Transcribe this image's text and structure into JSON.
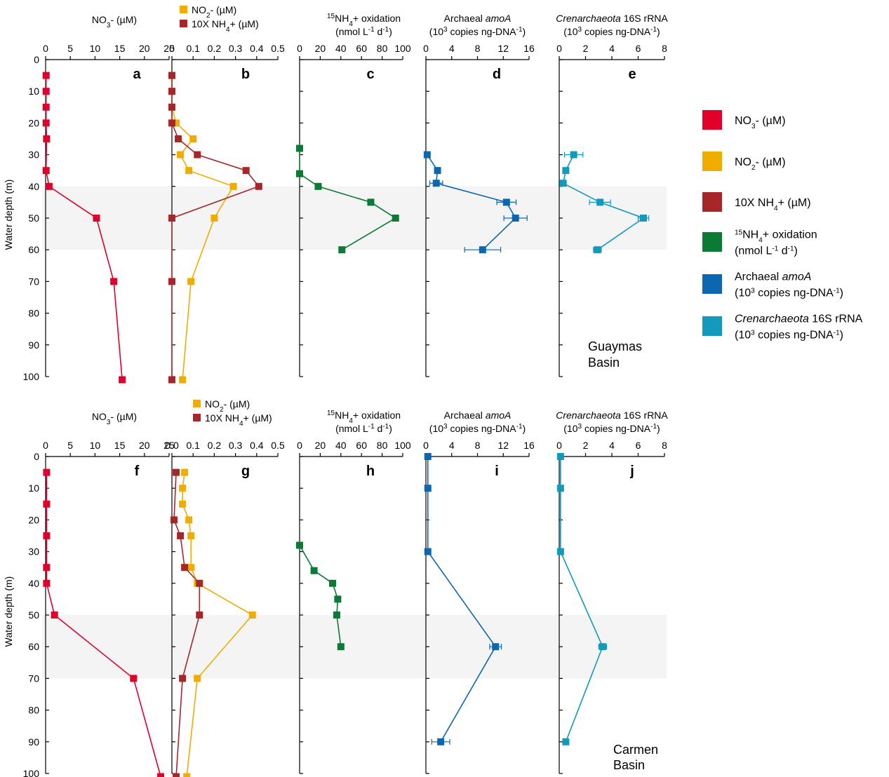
{
  "figure": {
    "legend": [
      {
        "key": "no3",
        "label": "NO3- (µM)",
        "color": "#e0002a"
      },
      {
        "key": "no2",
        "label": "NO2- (µM)",
        "color": "#f0ac00"
      },
      {
        "key": "nh4",
        "label": "10X NH4+ (µM)",
        "color": "#a6262a"
      },
      {
        "key": "ox",
        "label": "15NH4+ oxidation (nmol L-1 d-1)",
        "color": "#0a7a34"
      },
      {
        "key": "amoa",
        "label": "Archaeal amoA (103 copies ng-DNA-1)",
        "color": "#0d67b0"
      },
      {
        "key": "cren",
        "label": "Crenarchaeota 16S rRNA (103 copies ng-DNA-1)",
        "color": "#1399bc"
      }
    ],
    "rows": [
      {
        "basin": [
          "Guaymas",
          "Basin"
        ],
        "ylabel": "Water depth (m)"
      },
      {
        "basin": [
          "Carmen",
          "Basin"
        ],
        "ylabel": "Water depth (m)"
      }
    ]
  },
  "chart_data": [
    {
      "type": "line",
      "panel": "a",
      "title": "NO3- (µM)",
      "ylabel": "Water depth (m)",
      "xlim": [
        0,
        25
      ],
      "xticks": [
        0,
        5,
        10,
        15,
        20,
        25
      ],
      "ylim": [
        0,
        100
      ],
      "yticks": [
        0,
        10,
        20,
        30,
        40,
        50,
        60,
        70,
        80,
        90,
        100
      ],
      "y_inverted": true,
      "shaded_depth": [
        40,
        60
      ],
      "series": [
        {
          "name": "NO3- (µM)",
          "color": "#e0002a",
          "points": [
            [
              0.1,
              5
            ],
            [
              0.1,
              10
            ],
            [
              0.1,
              15
            ],
            [
              0.1,
              20
            ],
            [
              0.2,
              25
            ],
            [
              0.1,
              35
            ],
            [
              0.7,
              40
            ],
            [
              10.3,
              50
            ],
            [
              13.8,
              70
            ],
            [
              15.5,
              101
            ]
          ]
        }
      ]
    },
    {
      "type": "line",
      "panel": "b",
      "title": "",
      "legend": [
        "NO2- (µM)",
        "10X NH4+ (µM)"
      ],
      "xlim": [
        0,
        0.5
      ],
      "xticks": [
        0,
        0.1,
        0.2,
        0.3,
        0.4,
        0.5
      ],
      "ylim": [
        0,
        100
      ],
      "yticks": [
        0,
        10,
        20,
        30,
        40,
        50,
        60,
        70,
        80,
        90,
        100
      ],
      "y_inverted": true,
      "shaded_depth": [
        40,
        60
      ],
      "series": [
        {
          "name": "NO2- (µM)",
          "color": "#f0ac00",
          "points": [
            [
              0.0,
              5
            ],
            [
              0.0,
              10
            ],
            [
              0.0,
              15
            ],
            [
              0.02,
              20
            ],
            [
              0.1,
              25
            ],
            [
              0.04,
              30
            ],
            [
              0.08,
              35
            ],
            [
              0.29,
              40
            ],
            [
              0.2,
              50
            ],
            [
              0.09,
              70
            ],
            [
              0.05,
              101
            ]
          ]
        },
        {
          "name": "10X NH4+ (µM)",
          "color": "#a6262a",
          "points": [
            [
              0.0,
              5
            ],
            [
              0.0,
              10
            ],
            [
              0.0,
              15
            ],
            [
              0.0,
              20
            ],
            [
              0.03,
              25
            ],
            [
              0.12,
              30
            ],
            [
              0.35,
              35
            ],
            [
              0.41,
              40
            ],
            [
              0.0,
              50
            ],
            [
              0.0,
              70
            ],
            [
              0.0,
              101
            ]
          ]
        }
      ]
    },
    {
      "type": "line",
      "panel": "c",
      "title": "15NH4+ oxidation (nmol L-1 d-1)",
      "xlim": [
        0,
        100
      ],
      "xticks": [
        0,
        20,
        40,
        60,
        80,
        100
      ],
      "ylim": [
        0,
        100
      ],
      "yticks": [
        0,
        10,
        20,
        30,
        40,
        50,
        60,
        70,
        80,
        90,
        100
      ],
      "y_inverted": true,
      "shaded_depth": [
        40,
        60
      ],
      "series": [
        {
          "name": "15NH4+ oxidation",
          "color": "#0a7a34",
          "points": [
            [
              0,
              28
            ],
            [
              0,
              36
            ],
            [
              18,
              40
            ],
            [
              69,
              45
            ],
            [
              93,
              50
            ],
            [
              41,
              60
            ]
          ]
        }
      ]
    },
    {
      "type": "line",
      "panel": "d",
      "title": "Archaeal amoA (103 copies ng-DNA-1)",
      "xlim": [
        0,
        16
      ],
      "xticks": [
        0,
        4,
        8,
        12,
        16
      ],
      "ylim": [
        0,
        100
      ],
      "yticks": [
        0,
        10,
        20,
        30,
        40,
        50,
        60,
        70,
        80,
        90,
        100
      ],
      "y_inverted": true,
      "shaded_depth": [
        40,
        60
      ],
      "series": [
        {
          "name": "Archaeal amoA",
          "color": "#0d67b0",
          "points": [
            [
              0.2,
              30
            ],
            [
              1.8,
              35
            ],
            [
              1.6,
              39
            ],
            [
              12.5,
              45
            ],
            [
              13.9,
              50
            ],
            [
              8.8,
              60
            ]
          ],
          "xerr": [
            0,
            0,
            1,
            1.5,
            1.8,
            2.8
          ]
        }
      ]
    },
    {
      "type": "line",
      "panel": "e",
      "title": "Crenarchaeota 16S rRNA (103 copies ng-DNA-1)",
      "xlim": [
        0,
        8
      ],
      "xticks": [
        0,
        2,
        4,
        6,
        8
      ],
      "ylim": [
        0,
        100
      ],
      "yticks": [
        0,
        10,
        20,
        30,
        40,
        50,
        60,
        70,
        80,
        90,
        100
      ],
      "y_inverted": true,
      "shaded_depth": [
        40,
        60
      ],
      "series": [
        {
          "name": "Crenarchaeota 16S rRNA",
          "color": "#1399bc",
          "points": [
            [
              1.1,
              30
            ],
            [
              0.5,
              35
            ],
            [
              0.3,
              39
            ],
            [
              3.1,
              45
            ],
            [
              6.4,
              50
            ],
            [
              2.9,
              60
            ]
          ],
          "xerr": [
            0.7,
            0,
            0,
            0.8,
            0.4,
            0.3
          ]
        }
      ]
    },
    {
      "type": "line",
      "panel": "f",
      "title": "NO3- (µM)",
      "ylabel": "Water depth (m)",
      "xlim": [
        0,
        25
      ],
      "xticks": [
        0,
        5,
        10,
        15,
        20,
        25
      ],
      "ylim": [
        0,
        100
      ],
      "yticks": [
        0,
        10,
        20,
        30,
        40,
        50,
        60,
        70,
        80,
        90,
        100
      ],
      "y_inverted": true,
      "shaded_depth": [
        50,
        70
      ],
      "series": [
        {
          "name": "NO3- (µM)",
          "color": "#e0002a",
          "points": [
            [
              0.2,
              5
            ],
            [
              0.2,
              15
            ],
            [
              0.2,
              25
            ],
            [
              0.2,
              35
            ],
            [
              0.2,
              40
            ],
            [
              1.8,
              50
            ],
            [
              17.8,
              70
            ],
            [
              23.3,
              101
            ]
          ]
        }
      ]
    },
    {
      "type": "line",
      "panel": "g",
      "title": "",
      "legend": [
        "NO2- (µM)",
        "10X NH4+ (µM)"
      ],
      "xlim": [
        0,
        0.5
      ],
      "xticks": [
        0.0,
        0.1,
        0.2,
        0.3,
        0.4,
        0.5
      ],
      "ylim": [
        0,
        100
      ],
      "yticks": [
        0,
        10,
        20,
        30,
        40,
        50,
        60,
        70,
        80,
        90,
        100
      ],
      "y_inverted": true,
      "shaded_depth": [
        50,
        70
      ],
      "series": [
        {
          "name": "NO2- (µM)",
          "color": "#f0ac00",
          "points": [
            [
              0.06,
              5
            ],
            [
              0.05,
              10
            ],
            [
              0.05,
              15
            ],
            [
              0.08,
              20
            ],
            [
              0.09,
              25
            ],
            [
              0.09,
              35
            ],
            [
              0.12,
              40
            ],
            [
              0.38,
              50
            ],
            [
              0.12,
              70
            ],
            [
              0.07,
              101
            ]
          ]
        },
        {
          "name": "10X NH4+ (µM)",
          "color": "#a6262a",
          "points": [
            [
              0.02,
              5
            ],
            [
              0.01,
              20
            ],
            [
              0.04,
              25
            ],
            [
              0.06,
              35
            ],
            [
              0.13,
              40
            ],
            [
              0.13,
              50
            ],
            [
              0.05,
              70
            ],
            [
              0.02,
              101
            ]
          ]
        }
      ]
    },
    {
      "type": "line",
      "panel": "h",
      "title": "15NH4+ oxidation (nmol L-1 d-1)",
      "xlim": [
        0,
        100
      ],
      "xticks": [
        0,
        20,
        40,
        60,
        80,
        100
      ],
      "ylim": [
        0,
        100
      ],
      "yticks": [
        0,
        10,
        20,
        30,
        40,
        50,
        60,
        70,
        80,
        90,
        100
      ],
      "y_inverted": true,
      "shaded_depth": [
        50,
        70
      ],
      "series": [
        {
          "name": "15NH4+ oxidation",
          "color": "#0a7a34",
          "points": [
            [
              0,
              28
            ],
            [
              14,
              36
            ],
            [
              32,
              40
            ],
            [
              37,
              45
            ],
            [
              36,
              50
            ],
            [
              40,
              60
            ]
          ]
        }
      ]
    },
    {
      "type": "line",
      "panel": "i",
      "title": "Archaeal amoA (103 copies ng-DNA-1)",
      "xlim": [
        0,
        16
      ],
      "xticks": [
        0,
        4,
        8,
        12,
        16
      ],
      "ylim": [
        0,
        100
      ],
      "yticks": [
        0,
        10,
        20,
        30,
        40,
        50,
        60,
        70,
        80,
        90,
        100
      ],
      "y_inverted": true,
      "shaded_depth": [
        50,
        70
      ],
      "series": [
        {
          "name": "Archaeal amoA",
          "color": "#0d67b0",
          "points": [
            [
              0.3,
              0
            ],
            [
              0.3,
              10
            ],
            [
              0.3,
              30
            ],
            [
              10.8,
              60
            ],
            [
              2.3,
              90
            ]
          ],
          "xerr": [
            0,
            0,
            0,
            0.9,
            1.4
          ]
        }
      ]
    },
    {
      "type": "line",
      "panel": "j",
      "title": "Crenarchaeota 16S rRNA (103 copies ng-DNA-1)",
      "xlim": [
        0,
        8
      ],
      "xticks": [
        0,
        2,
        4,
        6,
        8
      ],
      "ylim": [
        0,
        100
      ],
      "yticks": [
        0,
        10,
        20,
        30,
        40,
        50,
        60,
        70,
        80,
        90,
        100
      ],
      "y_inverted": true,
      "shaded_depth": [
        50,
        70
      ],
      "series": [
        {
          "name": "Crenarchaeota 16S rRNA",
          "color": "#1399bc",
          "points": [
            [
              0.1,
              0
            ],
            [
              0.1,
              10
            ],
            [
              0.1,
              30
            ],
            [
              3.3,
              60
            ],
            [
              0.5,
              90
            ]
          ],
          "xerr": [
            0,
            0,
            0,
            0.3,
            0
          ]
        }
      ]
    }
  ]
}
